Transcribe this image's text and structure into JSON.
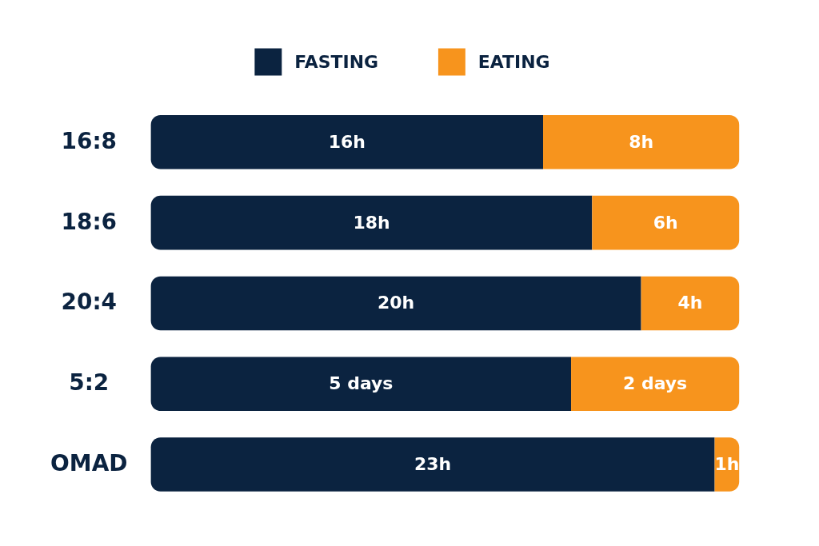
{
  "chart_data": [
    {
      "type": "bar",
      "orientation": "horizontal",
      "stacked": true,
      "legend": "top",
      "categories": [
        "16:8",
        "18:6",
        "20:4"
      ],
      "series": [
        {
          "name": "FASTING",
          "color": "#0b2340",
          "values": [
            16,
            18,
            20
          ],
          "value_labels": [
            "16h",
            "18h",
            "20h"
          ]
        },
        {
          "name": "EATING",
          "color": "#f7941d",
          "values": [
            8,
            6,
            4
          ],
          "value_labels": [
            "8h",
            "6h",
            "4h"
          ]
        }
      ]
    },
    {
      "type": "bar",
      "orientation": "horizontal",
      "stacked": true,
      "categories": [
        "5:2"
      ],
      "series": [
        {
          "color": "#0b2340",
          "values": [
            5
          ],
          "value_labels": [
            "5 days"
          ]
        },
        {
          "color": "#f7941d",
          "values": [
            2
          ],
          "value_labels": [
            "2 days"
          ]
        }
      ]
    },
    {
      "type": "bar",
      "orientation": "horizontal",
      "stacked": true,
      "categories": [
        "OMAD"
      ],
      "series": [
        {
          "color": "#0b2340",
          "values": [
            23
          ],
          "value_labels": [
            "23h"
          ]
        },
        {
          "color": "#f7941d",
          "values": [
            1
          ],
          "value_labels": [
            "1h"
          ]
        }
      ]
    }
  ]
}
